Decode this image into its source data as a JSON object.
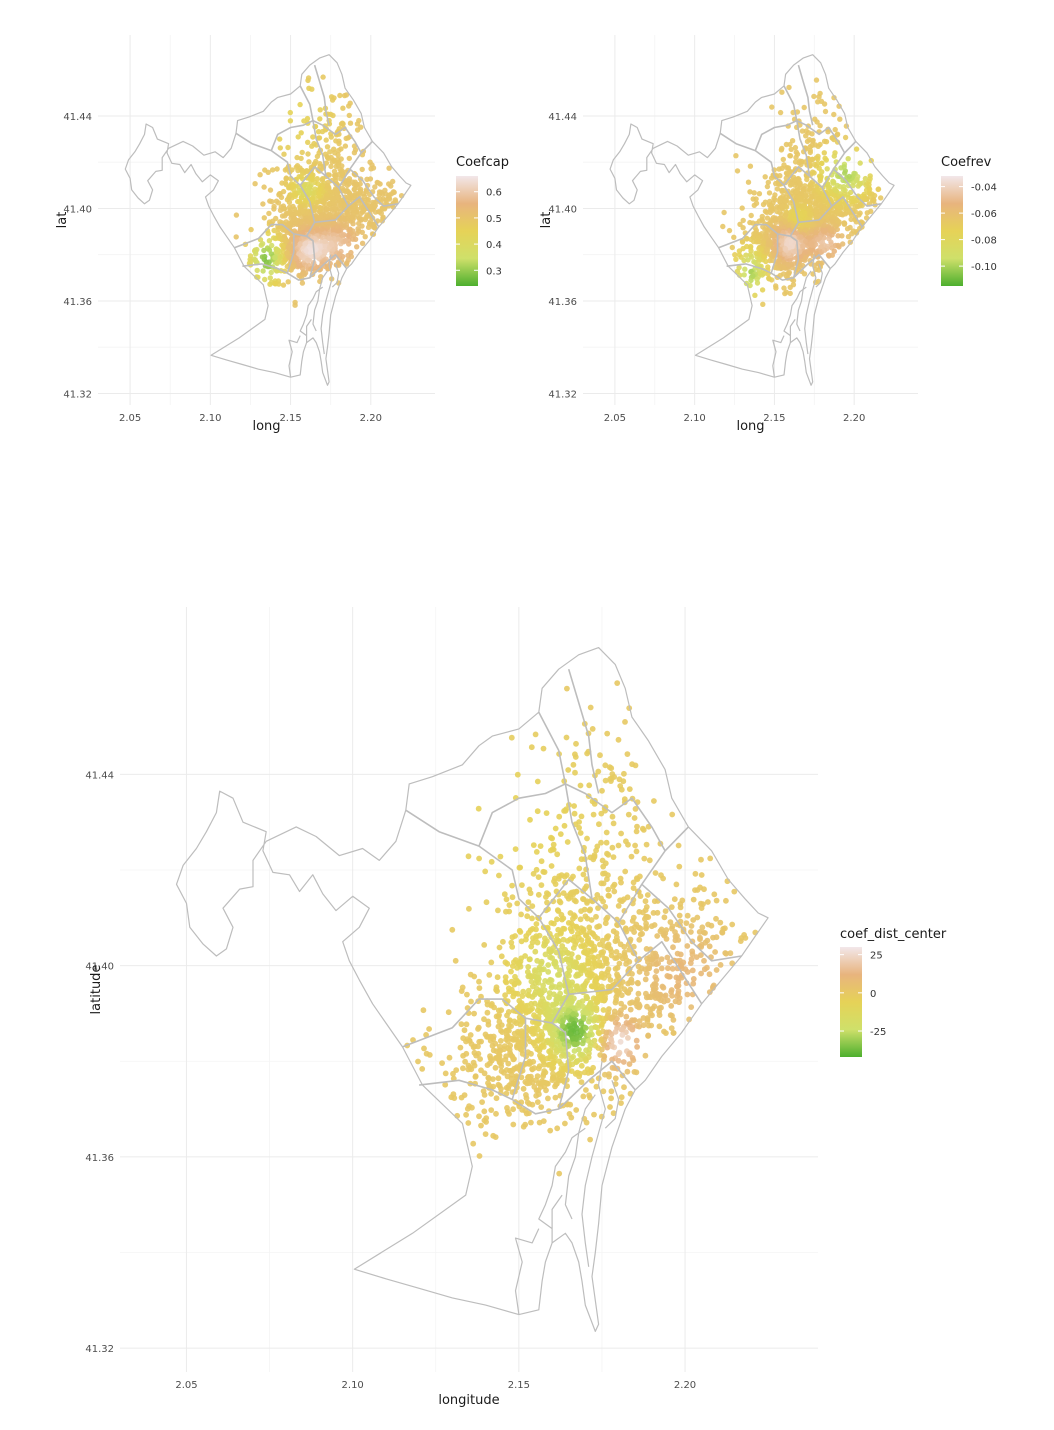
{
  "colors": {
    "low": "#4daf2e",
    "midlow": "#cfe06a",
    "mid": "#e6d257",
    "midhigh": "#e8b47e",
    "high": "#f2e7ea",
    "grid": "#ebebeb",
    "boundary": "#bdbdbd"
  },
  "chart_data": [
    {
      "type": "scatter",
      "xlabel": "long",
      "ylabel": "lat",
      "xlim": [
        2.03,
        2.24
      ],
      "ylim": [
        41.315,
        41.475
      ],
      "xticks": [
        2.05,
        2.1,
        2.15,
        2.2
      ],
      "xtick_labels": [
        "2.05",
        "2.10",
        "2.15",
        "2.20"
      ],
      "yticks": [
        41.32,
        41.36,
        41.4,
        41.44
      ],
      "ytick_labels": [
        "41.32",
        "41.36",
        "41.40",
        "41.44"
      ],
      "legend": {
        "title": "Coefcap",
        "placement": "right",
        "min": 0.24,
        "max": 0.66,
        "breaks": [
          0.3,
          0.4,
          0.5,
          0.6
        ],
        "labels": [
          "0.3",
          "0.4",
          "0.5",
          "0.6"
        ]
      },
      "variable": "cap",
      "point_count": 1400
    },
    {
      "type": "scatter",
      "xlabel": "long",
      "ylabel": "lat",
      "xlim": [
        2.03,
        2.24
      ],
      "ylim": [
        41.315,
        41.475
      ],
      "xticks": [
        2.05,
        2.1,
        2.15,
        2.2
      ],
      "xtick_labels": [
        "2.05",
        "2.10",
        "2.15",
        "2.20"
      ],
      "yticks": [
        41.32,
        41.36,
        41.4,
        41.44
      ],
      "ytick_labels": [
        "41.32",
        "41.36",
        "41.40",
        "41.44"
      ],
      "legend": {
        "title": "Coefrev",
        "placement": "right",
        "min": -0.115,
        "max": -0.032,
        "breaks": [
          -0.1,
          -0.08,
          -0.06,
          -0.04
        ],
        "labels": [
          "-0.10",
          "-0.08",
          "-0.06",
          "-0.04"
        ]
      },
      "variable": "rev",
      "point_count": 1400
    },
    {
      "type": "scatter",
      "xlabel": "longitude",
      "ylabel": "latitude",
      "xlim": [
        2.03,
        2.24
      ],
      "ylim": [
        41.315,
        41.475
      ],
      "xticks": [
        2.05,
        2.1,
        2.15,
        2.2
      ],
      "xtick_labels": [
        "2.05",
        "2.10",
        "2.15",
        "2.20"
      ],
      "yticks": [
        41.32,
        41.36,
        41.4,
        41.44
      ],
      "ytick_labels": [
        "41.32",
        "41.36",
        "41.40",
        "41.44"
      ],
      "legend": {
        "title": "coef_dist_center",
        "placement": "right",
        "min": -42,
        "max": 30,
        "breaks": [
          -25,
          0,
          25
        ],
        "labels": [
          "-25",
          "0",
          "25"
        ]
      },
      "variable": "dist",
      "point_count": 1900
    }
  ],
  "city_boundary": [
    [
      2.1005,
      41.3365
    ],
    [
      2.118,
      41.344
    ],
    [
      2.134,
      41.352
    ],
    [
      2.136,
      41.358
    ],
    [
      2.133,
      41.367
    ],
    [
      2.121,
      41.375
    ],
    [
      2.115,
      41.383
    ],
    [
      2.11,
      41.388
    ],
    [
      2.106,
      41.392
    ],
    [
      2.102,
      41.397
    ],
    [
      2.099,
      41.401
    ],
    [
      2.097,
      41.405
    ],
    [
      2.102,
      41.408
    ],
    [
      2.105,
      41.412
    ],
    [
      2.1,
      41.4145
    ],
    [
      2.095,
      41.4115
    ],
    [
      2.091,
      41.415
    ],
    [
      2.088,
      41.419
    ],
    [
      2.084,
      41.4155
    ],
    [
      2.081,
      41.419
    ],
    [
      2.076,
      41.4195
    ],
    [
      2.073,
      41.424
    ],
    [
      2.074,
      41.428
    ],
    [
      2.067,
      41.43
    ],
    [
      2.064,
      41.435
    ],
    [
      2.06,
      41.4365
    ],
    [
      2.059,
      41.432
    ],
    [
      2.056,
      41.428
    ],
    [
      2.053,
      41.4245
    ],
    [
      2.049,
      41.421
    ],
    [
      2.047,
      41.417
    ],
    [
      2.05,
      41.413
    ],
    [
      2.051,
      41.408
    ],
    [
      2.055,
      41.4045
    ],
    [
      2.059,
      41.402
    ],
    [
      2.062,
      41.4035
    ],
    [
      2.064,
      41.408
    ],
    [
      2.061,
      41.412
    ],
    [
      2.066,
      41.416
    ],
    [
      2.07,
      41.4165
    ],
    [
      2.07,
      41.422
    ],
    [
      2.074,
      41.426
    ],
    [
      2.083,
      41.429
    ],
    [
      2.089,
      41.427
    ],
    [
      2.096,
      41.423
    ],
    [
      2.103,
      41.4245
    ],
    [
      2.108,
      41.422
    ],
    [
      2.113,
      41.426
    ],
    [
      2.116,
      41.4325
    ],
    [
      2.117,
      41.438
    ],
    [
      2.124,
      41.4395
    ],
    [
      2.133,
      41.442
    ],
    [
      2.138,
      41.446
    ],
    [
      2.142,
      41.448
    ],
    [
      2.15,
      41.4495
    ],
    [
      2.156,
      41.453
    ],
    [
      2.157,
      41.458
    ],
    [
      2.162,
      41.462
    ],
    [
      2.168,
      41.465
    ],
    [
      2.174,
      41.4665
    ],
    [
      2.179,
      41.463
    ],
    [
      2.182,
      41.458
    ],
    [
      2.184,
      41.452
    ],
    [
      2.189,
      41.447
    ],
    [
      2.194,
      41.441
    ],
    [
      2.196,
      41.435
    ],
    [
      2.201,
      41.429
    ],
    [
      2.208,
      41.424
    ],
    [
      2.213,
      41.418
    ],
    [
      2.218,
      41.414
    ],
    [
      2.222,
      41.411
    ],
    [
      2.225,
      41.41
    ],
    [
      2.221,
      41.406
    ],
    [
      2.217,
      41.402
    ],
    [
      2.211,
      41.397
    ],
    [
      2.205,
      41.392
    ],
    [
      2.199,
      41.386
    ],
    [
      2.193,
      41.381
    ],
    [
      2.188,
      41.376
    ],
    [
      2.185,
      41.374
    ],
    [
      2.182,
      41.37
    ],
    [
      2.178,
      41.362
    ],
    [
      2.175,
      41.354
    ],
    [
      2.174,
      41.346
    ],
    [
      2.173,
      41.34
    ],
    [
      2.172,
      41.335
    ],
    [
      2.173,
      41.33
    ],
    [
      2.174,
      41.325
    ],
    [
      2.173,
      41.3235
    ],
    [
      2.17,
      41.329
    ],
    [
      2.169,
      41.334
    ],
    [
      2.168,
      41.338
    ],
    [
      2.166,
      41.342
    ],
    [
      2.164,
      41.344
    ],
    [
      2.16,
      41.342
    ],
    [
      2.158,
      41.338
    ],
    [
      2.157,
      41.334
    ],
    [
      2.156,
      41.328
    ],
    [
      2.15,
      41.327
    ],
    [
      2.14,
      41.329
    ],
    [
      2.13,
      41.3305
    ],
    [
      2.12,
      41.3325
    ],
    [
      2.11,
      41.3345
    ],
    [
      2.1005,
      41.3365
    ]
  ],
  "district_lines": [
    [
      [
        2.115,
        41.383
      ],
      [
        2.13,
        41.387
      ],
      [
        2.138,
        41.393
      ],
      [
        2.145,
        41.393
      ],
      [
        2.152,
        41.389
      ],
      [
        2.16,
        41.388
      ],
      [
        2.165,
        41.394
      ]
    ],
    [
      [
        2.152,
        41.389
      ],
      [
        2.152,
        41.381
      ],
      [
        2.148,
        41.372
      ],
      [
        2.155,
        41.369
      ],
      [
        2.162,
        41.37
      ],
      [
        2.171,
        41.376
      ],
      [
        2.178,
        41.38
      ],
      [
        2.185,
        41.374
      ]
    ],
    [
      [
        2.165,
        41.394
      ],
      [
        2.178,
        41.395
      ],
      [
        2.186,
        41.401
      ],
      [
        2.193,
        41.405
      ],
      [
        2.205,
        41.392
      ]
    ],
    [
      [
        2.165,
        41.394
      ],
      [
        2.162,
        41.403
      ],
      [
        2.156,
        41.41
      ],
      [
        2.15,
        41.414
      ],
      [
        2.148,
        41.42
      ],
      [
        2.138,
        41.425
      ],
      [
        2.126,
        41.428
      ],
      [
        2.116,
        41.4325
      ]
    ],
    [
      [
        2.156,
        41.41
      ],
      [
        2.165,
        41.418
      ],
      [
        2.172,
        41.414
      ],
      [
        2.18,
        41.409
      ],
      [
        2.186,
        41.401
      ]
    ],
    [
      [
        2.172,
        41.414
      ],
      [
        2.17,
        41.423
      ],
      [
        2.166,
        41.43
      ],
      [
        2.164,
        41.438
      ],
      [
        2.162,
        41.445
      ],
      [
        2.156,
        41.453
      ]
    ],
    [
      [
        2.18,
        41.409
      ],
      [
        2.187,
        41.417
      ],
      [
        2.194,
        41.424
      ],
      [
        2.201,
        41.429
      ]
    ],
    [
      [
        2.187,
        41.417
      ],
      [
        2.195,
        41.412
      ],
      [
        2.202,
        41.405
      ],
      [
        2.208,
        41.401
      ],
      [
        2.217,
        41.402
      ]
    ],
    [
      [
        2.164,
        41.438
      ],
      [
        2.17,
        41.436
      ],
      [
        2.178,
        41.432
      ],
      [
        2.184,
        41.435
      ],
      [
        2.19,
        41.429
      ],
      [
        2.194,
        41.424
      ]
    ],
    [
      [
        2.138,
        41.425
      ],
      [
        2.142,
        41.432
      ],
      [
        2.15,
        41.435
      ],
      [
        2.158,
        41.436
      ],
      [
        2.164,
        41.438
      ]
    ],
    [
      [
        2.165,
        41.462
      ],
      [
        2.168,
        41.455
      ],
      [
        2.171,
        41.448
      ],
      [
        2.172,
        41.442
      ],
      [
        2.174,
        41.436
      ]
    ],
    [
      [
        2.162,
        41.37
      ],
      [
        2.165,
        41.378
      ],
      [
        2.164,
        41.386
      ],
      [
        2.16,
        41.388
      ]
    ],
    [
      [
        2.12,
        41.375
      ],
      [
        2.132,
        41.376
      ],
      [
        2.142,
        41.374
      ],
      [
        2.148,
        41.372
      ]
    ]
  ],
  "port_lines": [
    [
      [
        2.175,
        41.38
      ],
      [
        2.174,
        41.375
      ],
      [
        2.176,
        41.37
      ],
      [
        2.174,
        41.365
      ],
      [
        2.172,
        41.36
      ],
      [
        2.17,
        41.354
      ],
      [
        2.169,
        41.348
      ],
      [
        2.17,
        41.342
      ],
      [
        2.171,
        41.337
      ]
    ],
    [
      [
        2.173,
        41.373
      ],
      [
        2.17,
        41.37
      ],
      [
        2.168,
        41.365
      ],
      [
        2.167,
        41.36
      ],
      [
        2.165,
        41.356
      ],
      [
        2.164,
        41.35
      ],
      [
        2.166,
        41.347
      ]
    ],
    [
      [
        2.17,
        41.366
      ],
      [
        2.166,
        41.364
      ],
      [
        2.164,
        41.361
      ],
      [
        2.161,
        41.358
      ],
      [
        2.16,
        41.354
      ],
      [
        2.158,
        41.35
      ],
      [
        2.156,
        41.347
      ],
      [
        2.16,
        41.345
      ]
    ],
    [
      [
        2.163,
        41.352
      ],
      [
        2.16,
        41.349
      ],
      [
        2.16,
        41.342
      ]
    ],
    [
      [
        2.178,
        41.376
      ],
      [
        2.18,
        41.372
      ],
      [
        2.179,
        41.368
      ],
      [
        2.176,
        41.366
      ]
    ],
    [
      [
        2.15,
        41.327
      ],
      [
        2.149,
        41.332
      ],
      [
        2.151,
        41.338
      ],
      [
        2.149,
        41.343
      ],
      [
        2.154,
        41.342
      ],
      [
        2.156,
        41.345
      ]
    ]
  ]
}
